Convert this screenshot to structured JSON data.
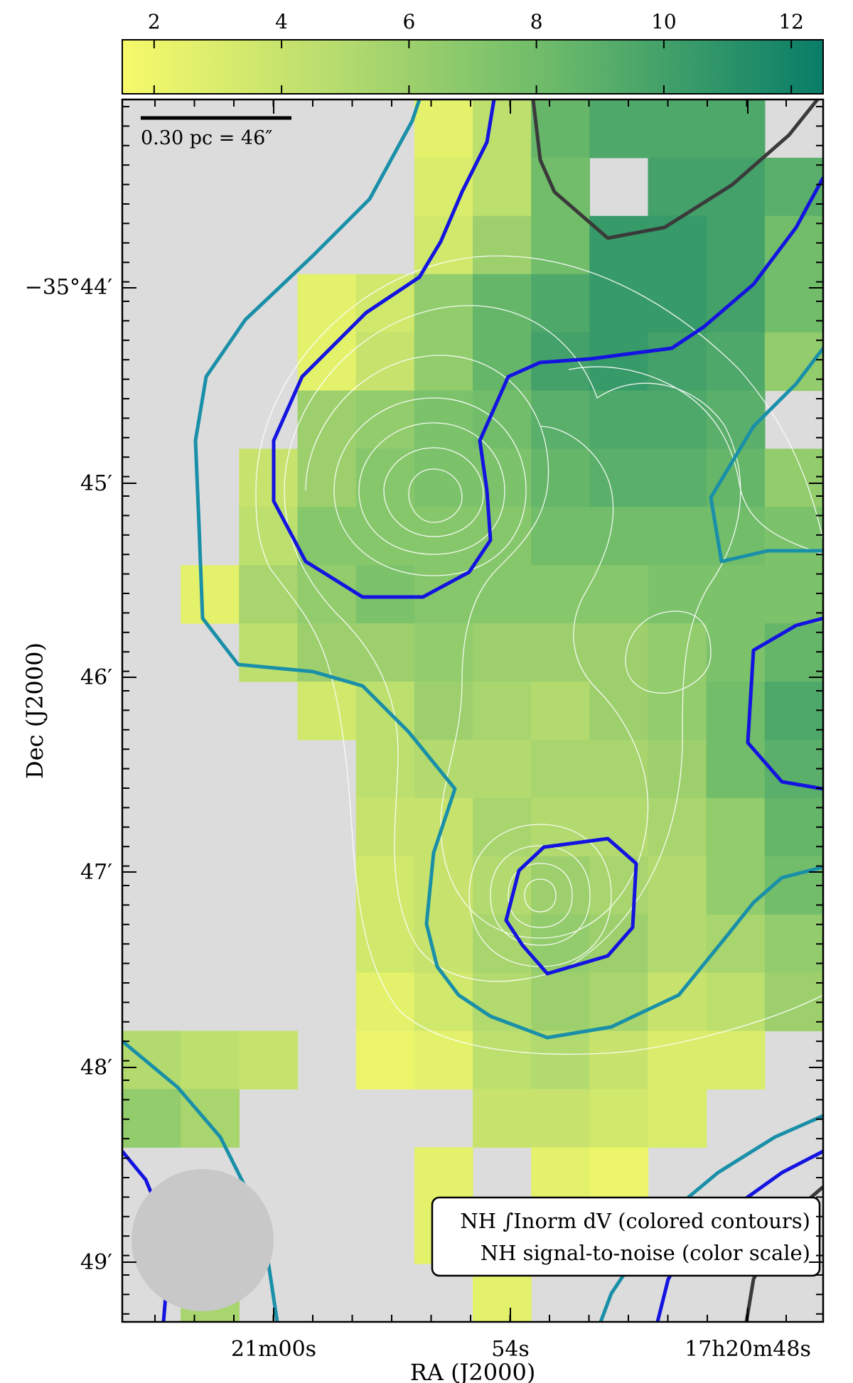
{
  "chart_data": {
    "type": "heatmap",
    "title": "",
    "xlabel": "RA (J2000)",
    "ylabel": "Dec (J2000)",
    "x_tick_labels": [
      "21m00s",
      "54s",
      "17h20m48s"
    ],
    "y_tick_labels": [
      "−35°44′",
      "45′",
      "46′",
      "47′",
      "48′",
      "49′"
    ],
    "colorbar": {
      "label": "",
      "range": [
        1.5,
        12.5
      ],
      "ticks": [
        "2",
        "4",
        "6",
        "8",
        "10",
        "12"
      ],
      "color_low": "#f7fa6a",
      "color_high": "#087d68"
    },
    "scale_bar_label": "0.30 pc = 46″",
    "legend": {
      "placement": "bottom-right",
      "line1": "NH ∫Inorm dV (colored contours)",
      "line2": "NH signal-to-noise (color scale)"
    },
    "grid_cols": 12,
    "grid_rows": 21,
    "snr_grid": [
      [
        0,
        0,
        0,
        0,
        0,
        2.5,
        4.5,
        8.5,
        9.5,
        9.5,
        9.5,
        0
      ],
      [
        0,
        0,
        0,
        0,
        0,
        3.0,
        4.5,
        8.0,
        0,
        10.0,
        10.0,
        9.0
      ],
      [
        0,
        0,
        0,
        0,
        0,
        3.5,
        6.0,
        8.0,
        10.5,
        10.5,
        10.0,
        8.0
      ],
      [
        0,
        0,
        0,
        2.5,
        3.5,
        6.5,
        8.5,
        9.5,
        10.5,
        10.5,
        10.0,
        8.0
      ],
      [
        0,
        0,
        0,
        2.5,
        4.0,
        6.5,
        8.5,
        10.0,
        10.5,
        10.0,
        9.5,
        6.5
      ],
      [
        0,
        0,
        0,
        6.0,
        6.5,
        7.5,
        8.0,
        9.0,
        9.5,
        9.5,
        9.0,
        0
      ],
      [
        0,
        0,
        4.0,
        6.0,
        7.0,
        7.5,
        7.5,
        8.5,
        9.0,
        9.0,
        8.5,
        6.5
      ],
      [
        0,
        0,
        4.5,
        7.0,
        7.0,
        7.0,
        7.0,
        8.0,
        8.0,
        8.0,
        8.0,
        7.5
      ],
      [
        0,
        2.5,
        5.5,
        6.5,
        7.5,
        7.0,
        7.0,
        7.0,
        7.0,
        7.5,
        7.5,
        7.5
      ],
      [
        0,
        0,
        4.5,
        6.0,
        6.0,
        6.5,
        6.0,
        6.0,
        6.0,
        6.5,
        7.5,
        8.5
      ],
      [
        0,
        0,
        0,
        3.5,
        4.5,
        6.0,
        5.5,
        5.0,
        6.0,
        6.5,
        8.0,
        9.5
      ],
      [
        0,
        0,
        0,
        0,
        4.5,
        5.0,
        5.0,
        5.5,
        5.5,
        6.0,
        8.0,
        9.0
      ],
      [
        0,
        0,
        0,
        0,
        4.0,
        4.0,
        5.5,
        5.0,
        5.0,
        5.5,
        6.5,
        8.5
      ],
      [
        0,
        0,
        0,
        0,
        3.5,
        4.0,
        5.0,
        6.0,
        5.5,
        5.0,
        6.5,
        8.0
      ],
      [
        0,
        0,
        0,
        0,
        3.5,
        4.0,
        5.5,
        6.5,
        6.0,
        5.0,
        5.5,
        6.5
      ],
      [
        0,
        0,
        0,
        0,
        2.5,
        3.5,
        5.0,
        6.0,
        5.5,
        4.0,
        4.5,
        6.0
      ],
      [
        5.0,
        4.5,
        4.0,
        0,
        2.0,
        2.5,
        4.5,
        5.0,
        4.0,
        3.0,
        3.0,
        0
      ],
      [
        6.5,
        5.5,
        0,
        0,
        0,
        0,
        4.0,
        4.0,
        3.5,
        3.0,
        0,
        0
      ],
      [
        0,
        0,
        0,
        0,
        0,
        2.5,
        0,
        2.5,
        2.0,
        0,
        0,
        0
      ],
      [
        0,
        0,
        0,
        0,
        0,
        2.5,
        2.5,
        0,
        0,
        0,
        0,
        0
      ],
      [
        0,
        5.5,
        0,
        0,
        0,
        0,
        2.5,
        0,
        0,
        0,
        0,
        0
      ]
    ],
    "contour_colors": {
      "low": "#1a8fa8",
      "mid": "#1414e0",
      "high": "#3a3a3a",
      "white": "#ffffff",
      "beam": "#c8c8c8",
      "background": "#dcdcdc"
    }
  }
}
